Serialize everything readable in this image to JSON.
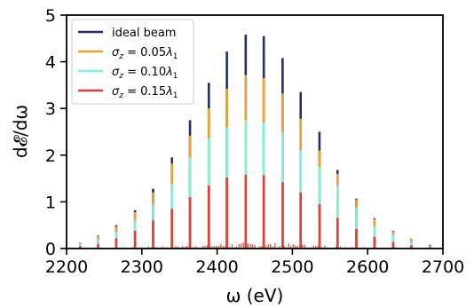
{
  "chart_data": {
    "type": "bar",
    "xlabel": "ω (eV)",
    "ylabel": "d𝓔/dω",
    "xlim": [
      2200,
      2700
    ],
    "ylim": [
      0,
      5
    ],
    "xticks": [
      "2200",
      "2300",
      "2400",
      "2500",
      "2600",
      "2700"
    ],
    "yticks": [
      "0",
      "1",
      "2",
      "3",
      "4",
      "5"
    ],
    "grid": false,
    "legend_position": "top-left",
    "x": [
      2218,
      2242,
      2266,
      2291,
      2315,
      2340,
      2364,
      2389,
      2413,
      2438,
      2462,
      2487,
      2511,
      2536,
      2560,
      2585,
      2609,
      2634,
      2658,
      2683
    ],
    "series": [
      {
        "name": "ideal beam",
        "color": "#1f2f6e",
        "values": [
          0.12,
          0.28,
          0.5,
          0.82,
          1.28,
          1.95,
          2.75,
          3.55,
          4.22,
          4.58,
          4.55,
          4.08,
          3.35,
          2.5,
          1.68,
          1.07,
          0.65,
          0.38,
          0.2,
          0.08
        ]
      },
      {
        "name": "σ_z = 0.05λ₁",
        "color": "#f0a030",
        "values": [
          0.11,
          0.27,
          0.47,
          0.78,
          1.2,
          1.82,
          2.42,
          3.0,
          3.42,
          3.72,
          3.65,
          3.32,
          2.78,
          2.1,
          1.6,
          1.05,
          0.63,
          0.37,
          0.19,
          0.07
        ]
      },
      {
        "name": "σ_z = 0.10λ₁",
        "color": "#7ff0e4",
        "values": [
          0.1,
          0.2,
          0.36,
          0.6,
          0.95,
          1.38,
          1.95,
          2.35,
          2.6,
          2.75,
          2.7,
          2.5,
          2.1,
          1.75,
          1.35,
          0.88,
          0.48,
          0.3,
          0.15,
          0.05
        ]
      },
      {
        "name": "σ_z = 0.15λ₁",
        "color": "#e83d30",
        "values": [
          0.05,
          0.1,
          0.22,
          0.38,
          0.6,
          0.85,
          1.1,
          1.35,
          1.52,
          1.58,
          1.57,
          1.42,
          1.2,
          0.95,
          0.66,
          0.42,
          0.25,
          0.14,
          0.07,
          0.03
        ]
      }
    ]
  }
}
